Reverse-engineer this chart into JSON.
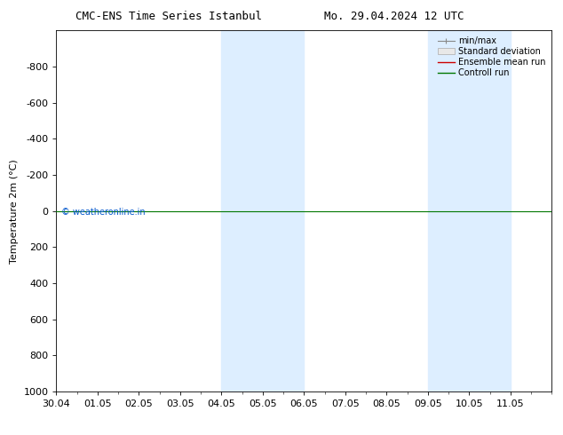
{
  "title_left": "CMC-ENS Time Series Istanbul",
  "title_right": "Mo. 29.04.2024 12 UTC",
  "ylabel": "Temperature 2m (°C)",
  "watermark": "© weatheronline.in",
  "watermark_color": "#0055cc",
  "ylim_bottom": 1000,
  "ylim_top": -1000,
  "yticks": [
    -800,
    -600,
    -400,
    -200,
    0,
    200,
    400,
    600,
    800,
    1000
  ],
  "xlim_start": 0,
  "xlim_end": 12,
  "xtick_positions": [
    0,
    1,
    2,
    3,
    4,
    5,
    6,
    7,
    8,
    9,
    10,
    11
  ],
  "xtick_labels": [
    "30.04",
    "01.05",
    "02.05",
    "03.05",
    "04.05",
    "05.05",
    "06.05",
    "07.05",
    "08.05",
    "09.05",
    "10.05",
    "11.05"
  ],
  "shaded_regions": [
    {
      "start": 4.0,
      "end": 6.0
    },
    {
      "start": 9.0,
      "end": 11.0
    }
  ],
  "shaded_color": "#ddeeff",
  "control_run_y": 0,
  "control_run_color": "#007700",
  "ensemble_mean_color": "#cc0000",
  "minmax_color": "#888888",
  "stddev_color": "#cccccc",
  "background_color": "#ffffff",
  "plot_bg_color": "#ffffff",
  "legend_entries": [
    "min/max",
    "Standard deviation",
    "Ensemble mean run",
    "Controll run"
  ],
  "font_size": 8,
  "title_font_size": 9
}
